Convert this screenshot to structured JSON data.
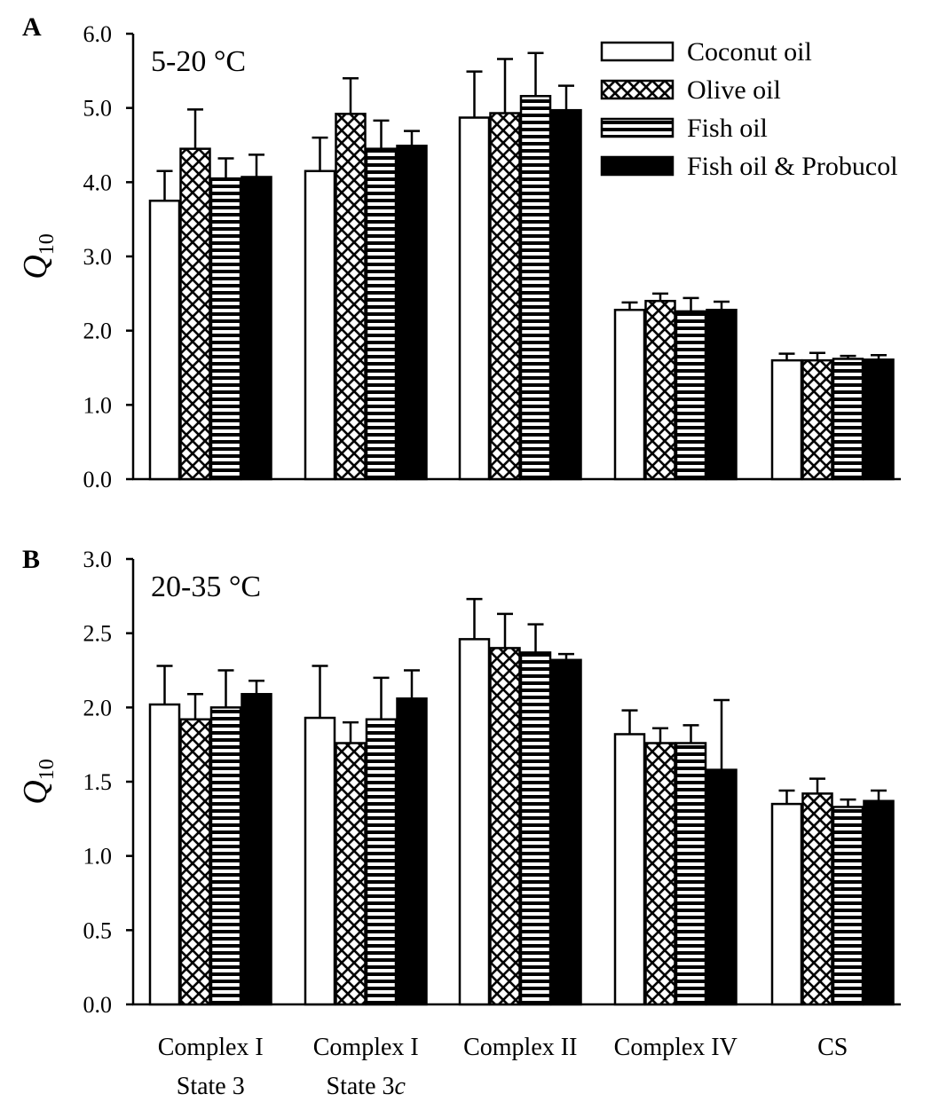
{
  "chart_data": [
    {
      "type": "bar",
      "panel": "A",
      "range_label": "5-20 °C",
      "ylabel": "Q",
      "ylabel_sub": "10",
      "ylim": [
        0,
        6
      ],
      "yticks": [
        "0.0",
        "1.0",
        "2.0",
        "3.0",
        "4.0",
        "5.0",
        "6.0"
      ],
      "categories": [
        "Complex I State 3",
        "Complex I State 3c",
        "Complex II",
        "Complex IV",
        "CS"
      ],
      "series": [
        {
          "name": "Coconut oil",
          "values": [
            3.75,
            4.15,
            4.87,
            2.28,
            1.6
          ],
          "errors": [
            0.4,
            0.45,
            0.62,
            0.1,
            0.09
          ]
        },
        {
          "name": "Olive oil",
          "values": [
            4.45,
            4.92,
            4.93,
            2.4,
            1.6
          ],
          "errors": [
            0.53,
            0.48,
            0.73,
            0.1,
            0.1
          ]
        },
        {
          "name": "Fish oil",
          "values": [
            4.05,
            4.45,
            5.16,
            2.26,
            1.62
          ],
          "errors": [
            0.27,
            0.38,
            0.58,
            0.18,
            0.04
          ]
        },
        {
          "name": "Fish oil & Probucol",
          "values": [
            4.07,
            4.49,
            4.97,
            2.28,
            1.61
          ],
          "errors": [
            0.3,
            0.2,
            0.33,
            0.11,
            0.06
          ]
        }
      ],
      "legend_position": "top-right"
    },
    {
      "type": "bar",
      "panel": "B",
      "range_label": "20-35 °C",
      "ylabel": "Q",
      "ylabel_sub": "10",
      "ylim": [
        0,
        3
      ],
      "yticks": [
        "0.0",
        "0.5",
        "1.0",
        "1.5",
        "2.0",
        "2.5",
        "3.0"
      ],
      "categories": [
        "Complex I State 3",
        "Complex I State 3c",
        "Complex II",
        "Complex IV",
        "CS"
      ],
      "category_lines": [
        [
          "Complex I",
          "State 3"
        ],
        [
          "Complex I",
          "State 3c"
        ],
        [
          "Complex II",
          ""
        ],
        [
          "Complex IV",
          ""
        ],
        [
          "CS",
          ""
        ]
      ],
      "series": [
        {
          "name": "Coconut oil",
          "values": [
            2.02,
            1.93,
            2.46,
            1.82,
            1.35
          ],
          "errors": [
            0.26,
            0.35,
            0.27,
            0.16,
            0.09
          ]
        },
        {
          "name": "Olive oil",
          "values": [
            1.92,
            1.76,
            2.4,
            1.76,
            1.42
          ],
          "errors": [
            0.17,
            0.14,
            0.23,
            0.1,
            0.1
          ]
        },
        {
          "name": "Fish oil",
          "values": [
            2.0,
            1.92,
            2.37,
            1.76,
            1.33
          ],
          "errors": [
            0.25,
            0.28,
            0.19,
            0.12,
            0.05
          ]
        },
        {
          "name": "Fish oil & Probucol",
          "values": [
            2.09,
            2.06,
            2.32,
            1.58,
            1.37
          ],
          "errors": [
            0.09,
            0.19,
            0.04,
            0.47,
            0.07
          ]
        }
      ]
    }
  ]
}
